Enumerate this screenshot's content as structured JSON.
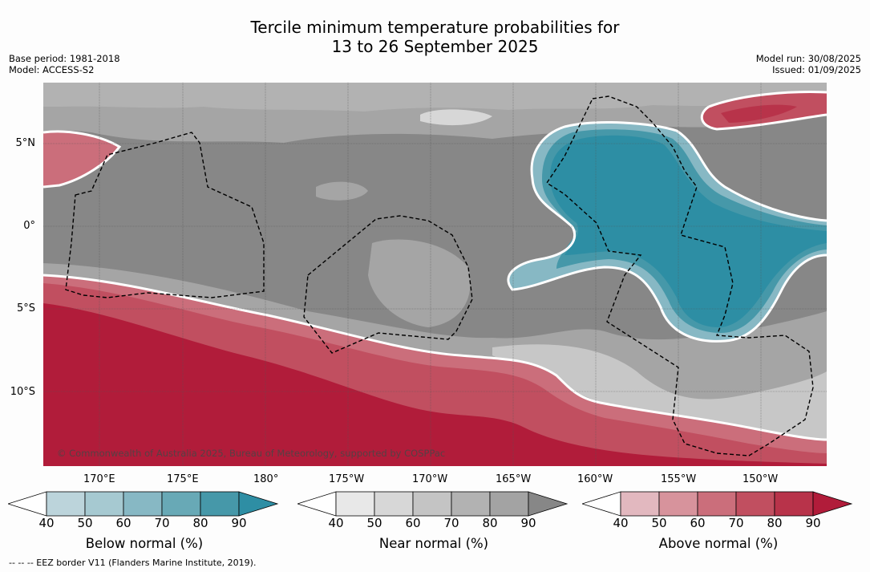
{
  "title": {
    "line1": "Tercile minimum temperature probabilities for",
    "line2": "13 to 26 September 2025"
  },
  "meta": {
    "base_period": "Base period: 1981-2018",
    "model": "Model: ACCESS-S2",
    "model_run": "Model run: 30/08/2025",
    "issued": "Issued: 01/09/2025"
  },
  "map": {
    "lat_ticks": [
      "5°N",
      "0°",
      "5°S",
      "10°S"
    ],
    "lon_ticks": [
      "170°E",
      "175°E",
      "180°",
      "175°W",
      "170°W",
      "165°W",
      "160°W",
      "155°W",
      "150°W"
    ],
    "copyright": "© Commonwealth of Australia 2025, Bureau of Meteorology, supported by COSPPac",
    "colors": {
      "near_dark": "#878787",
      "near_mid": "#a5a5a5",
      "near_light": "#c7c7c7",
      "below_dark": "#2d8ea4",
      "above_dark": "#b11c3a"
    }
  },
  "legends": [
    {
      "label": "Below normal (%)",
      "ticks": [
        "40",
        "50",
        "60",
        "70",
        "80",
        "90"
      ],
      "colors": [
        "#ffffff",
        "#bcd4db",
        "#a6c9d1",
        "#87b8c4",
        "#68a9b6",
        "#4698a9",
        "#2e8ea4"
      ]
    },
    {
      "label": "Near normal (%)",
      "ticks": [
        "40",
        "50",
        "60",
        "70",
        "80",
        "90"
      ],
      "colors": [
        "#ffffff",
        "#e8e8e8",
        "#d7d7d7",
        "#c4c4c4",
        "#b2b2b2",
        "#a3a3a3",
        "#878787"
      ]
    },
    {
      "label": "Above normal (%)",
      "ticks": [
        "40",
        "50",
        "60",
        "70",
        "80",
        "90"
      ],
      "colors": [
        "#ffffff",
        "#e2b8bf",
        "#d7939c",
        "#cb6e7b",
        "#c14f60",
        "#b8334a",
        "#b11c3a"
      ]
    }
  ],
  "footnote": "--  --  -- EEZ border V11 (Flanders Marine Institute, 2019)."
}
